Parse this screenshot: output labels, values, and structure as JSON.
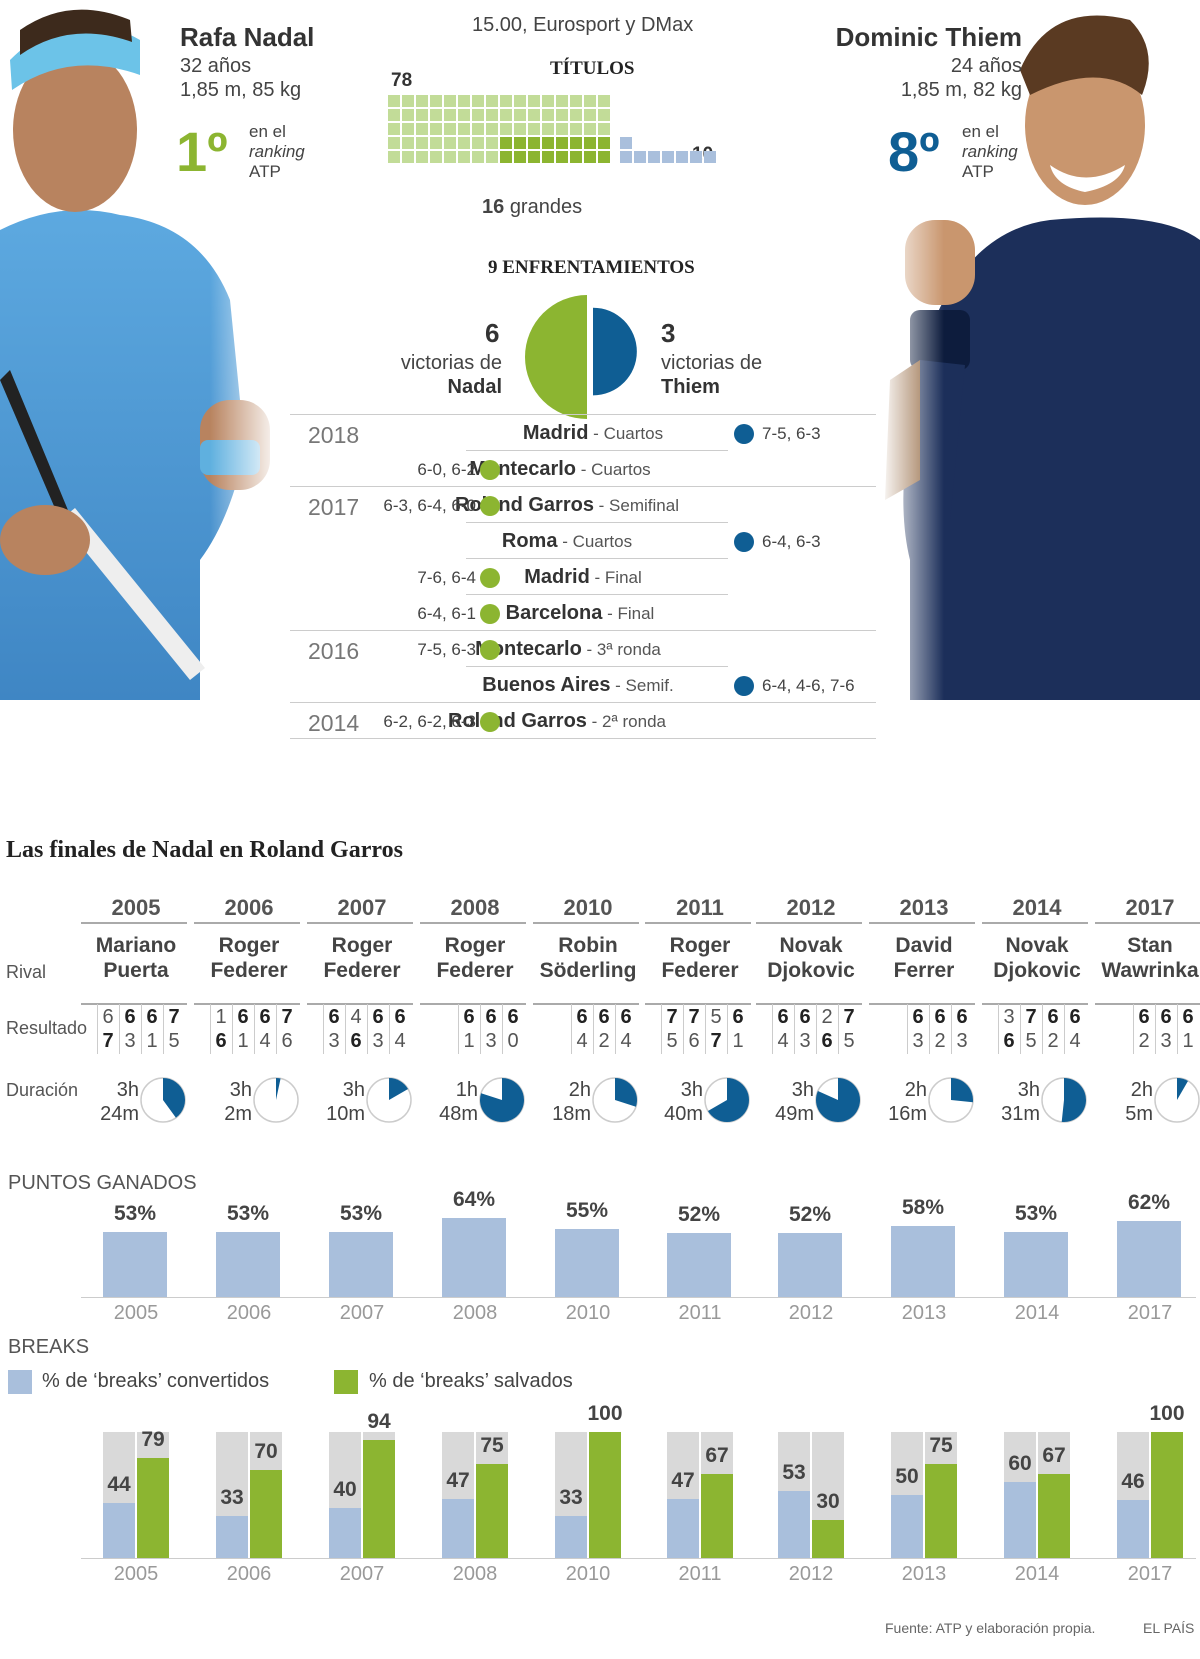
{
  "header": {
    "broadcast": "15.00, Eurosport y DMax",
    "titles_heading": "TÍTULOS",
    "big_titles_count": "16",
    "big_titles_label": "grandes",
    "nadal_titles": 78,
    "thiem_titles": 10,
    "meetings_heading": "9 ENFRENTAMIENTOS"
  },
  "nadal": {
    "name": "Rafa Nadal",
    "age": "32 años",
    "stats": "1,85 m, 85 kg",
    "rank": "1º",
    "rank_l1": "en el",
    "rank_l2": "ranking",
    "rank_l3": "ATP",
    "wins_num": "6",
    "wins_l1": "victorias de",
    "wins_l2": "Nadal",
    "color": "#8cb531"
  },
  "thiem": {
    "name": "Dominic Thiem",
    "age": "24 años",
    "stats": "1,85 m, 82 kg",
    "rank": "8º",
    "rank_l1": "en el",
    "rank_l2": "ranking",
    "rank_l3": "ATP",
    "wins_num": "3",
    "wins_l1": "victorias de",
    "wins_l2": "Thiem",
    "color": "#0f5e94"
  },
  "matches": [
    {
      "year": "2018",
      "winner": "thiem",
      "tournament": "Madrid",
      "round": " - Cuartos",
      "score": "7-5, 6-3"
    },
    {
      "year": "",
      "winner": "nadal",
      "tournament": "Montecarlo",
      "round": " - Cuartos",
      "score": "6-0, 6-2"
    },
    {
      "year": "2017",
      "winner": "nadal",
      "tournament": "Roland Garros",
      "round": " - Semifinal",
      "score": "6-3, 6-4, 6-0"
    },
    {
      "year": "",
      "winner": "thiem",
      "tournament": "Roma",
      "round": " - Cuartos",
      "score": "6-4, 6-3"
    },
    {
      "year": "",
      "winner": "nadal",
      "tournament": "Madrid",
      "round": " - Final",
      "score": "7-6, 6-4"
    },
    {
      "year": "",
      "winner": "nadal",
      "tournament": "Barcelona",
      "round": "  - Final",
      "score": "6-4, 6-1"
    },
    {
      "year": "2016",
      "winner": "nadal",
      "tournament": "Montecarlo",
      "round": " - 3ª  ronda",
      "score": "7-5, 6-3"
    },
    {
      "year": "",
      "winner": "thiem",
      "tournament": "Buenos Aires",
      "round": " - Semif.",
      "score": "6-4, 4-6, 7-6"
    },
    {
      "year": "2014",
      "winner": "nadal",
      "tournament": "Roland Garros",
      "round": " - 2ª ronda",
      "score": "6-2, 6-2, 6-3"
    }
  ],
  "finals": {
    "title": "Las finales de Nadal en Roland Garros",
    "row_rival": "Rival",
    "row_result": "Resultado",
    "row_duration": "Duración",
    "points_heading": "PUNTOS GANADOS",
    "breaks_heading": "BREAKS",
    "legend_converted": "% de ‘breaks’ convertidos",
    "legend_saved": "% de ‘breaks’ salvados",
    "source": "Fuente: ATP y elaboración propia.",
    "credit": "EL PAÍS"
  },
  "chart_data": [
    {
      "type": "table",
      "title": "Las finales de Nadal en Roland Garros",
      "columns": [
        "2005",
        "2006",
        "2007",
        "2008",
        "2010",
        "2011",
        "2012",
        "2013",
        "2014",
        "2017"
      ],
      "rivals": [
        [
          "Mariano",
          "Puerta"
        ],
        [
          "Roger",
          "Federer"
        ],
        [
          "Roger",
          "Federer"
        ],
        [
          "Roger",
          "Federer"
        ],
        [
          "Robin",
          "Söderling"
        ],
        [
          "Roger",
          "Federer"
        ],
        [
          "Novak",
          "Djokovic"
        ],
        [
          "David",
          "Ferrer"
        ],
        [
          "Novak",
          "Djokovic"
        ],
        [
          "Stan",
          "Wawrinka"
        ]
      ],
      "sets_nadal": [
        [
          6,
          6,
          6,
          7
        ],
        [
          1,
          6,
          6,
          7
        ],
        [
          6,
          4,
          6,
          6
        ],
        [
          6,
          6,
          6
        ],
        [
          6,
          6,
          6
        ],
        [
          7,
          7,
          5,
          6
        ],
        [
          6,
          6,
          2,
          7
        ],
        [
          6,
          6,
          6
        ],
        [
          3,
          7,
          6,
          6
        ],
        [
          6,
          6,
          6
        ]
      ],
      "sets_rival": [
        [
          7,
          3,
          1,
          5
        ],
        [
          6,
          1,
          4,
          6
        ],
        [
          3,
          6,
          3,
          4
        ],
        [
          1,
          3,
          0
        ],
        [
          4,
          2,
          4
        ],
        [
          5,
          6,
          7,
          1
        ],
        [
          4,
          3,
          6,
          5
        ],
        [
          3,
          2,
          3
        ],
        [
          6,
          5,
          2,
          4
        ],
        [
          2,
          3,
          1
        ]
      ],
      "duration_h": [
        "3h",
        "3h",
        "3h",
        "1h",
        "2h",
        "3h",
        "3h",
        "2h",
        "3h",
        "2h"
      ],
      "duration_m": [
        "24m",
        "2m",
        "10m",
        "48m",
        "18m",
        "40m",
        "49m",
        "16m",
        "31m",
        "5m"
      ],
      "duration_minutes": [
        204,
        182,
        190,
        108,
        138,
        220,
        229,
        136,
        211,
        125
      ]
    },
    {
      "type": "bar",
      "title": "PUNTOS GANADOS",
      "categories": [
        "2005",
        "2006",
        "2007",
        "2008",
        "2010",
        "2011",
        "2012",
        "2013",
        "2014",
        "2017"
      ],
      "values": [
        53,
        53,
        53,
        64,
        55,
        52,
        52,
        58,
        53,
        62
      ],
      "unit": "%"
    },
    {
      "type": "bar",
      "title": "BREAKS",
      "categories": [
        "2005",
        "2006",
        "2007",
        "2008",
        "2010",
        "2011",
        "2012",
        "2013",
        "2014",
        "2017"
      ],
      "series": [
        {
          "name": "% de ‘breaks’ convertidos",
          "values": [
            44,
            33,
            40,
            47,
            33,
            47,
            53,
            50,
            60,
            46
          ],
          "color": "#a9bfdc"
        },
        {
          "name": "% de ‘breaks’ salvados",
          "values": [
            79,
            70,
            94,
            75,
            100,
            67,
            30,
            75,
            67,
            100
          ],
          "color": "#8cb531"
        }
      ],
      "ylim": [
        0,
        100
      ]
    }
  ]
}
